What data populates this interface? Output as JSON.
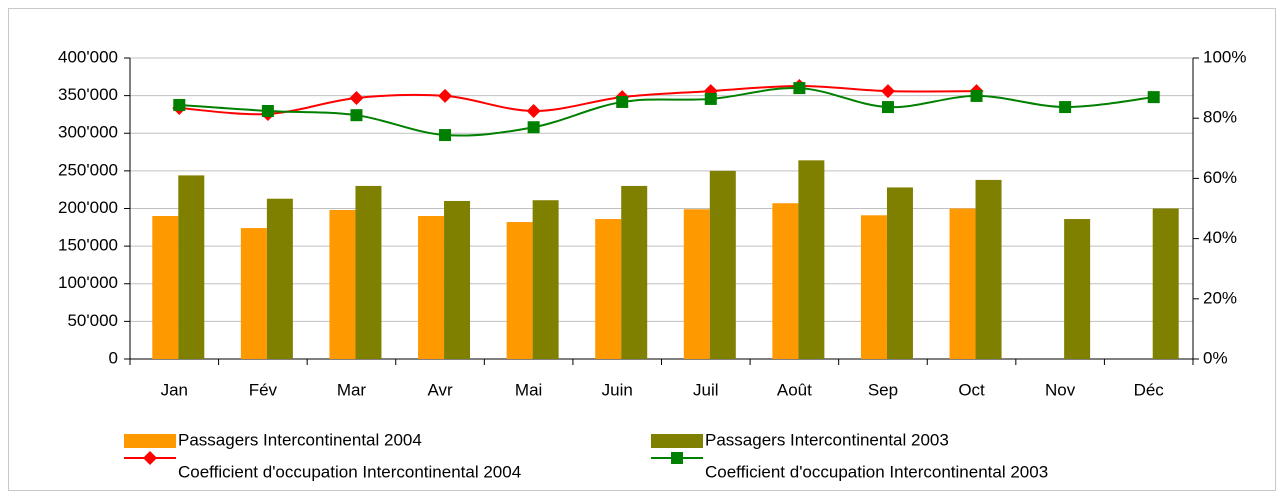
{
  "chart_data": {
    "type": "bar",
    "categories": [
      "Jan",
      "Fév",
      "Mar",
      "Avr",
      "Mai",
      "Juin",
      "Juil",
      "Août",
      "Sep",
      "Oct",
      "Nov",
      "Déc"
    ],
    "series": [
      {
        "name": "Passagers Intercontinental 2004",
        "type": "bar",
        "color": "#ff9900",
        "values": [
          190000,
          174000,
          198000,
          190000,
          182000,
          186000,
          199000,
          207000,
          191000,
          200000,
          null,
          null
        ]
      },
      {
        "name": "Passagers Intercontinental 2003",
        "type": "bar",
        "color": "#808000",
        "values": [
          244000,
          213000,
          230000,
          210000,
          211000,
          230000,
          250000,
          264000,
          228000,
          238000,
          186000,
          200000
        ]
      },
      {
        "name": "Coefficient d'occupation Intercontinental 2004",
        "type": "line",
        "axis": "y2",
        "color": "#ff0000",
        "marker": "diamond",
        "smooth": true,
        "values": [
          83.4,
          81.4,
          86.7,
          87.4,
          82.4,
          87,
          89,
          90.7,
          89,
          89,
          null,
          null
        ]
      },
      {
        "name": "Coefficient d'occupation Intercontinental 2003",
        "type": "line",
        "axis": "y2",
        "color": "#008000",
        "marker": "square",
        "smooth": true,
        "values": [
          84.4,
          82.4,
          81,
          74.4,
          77,
          85.4,
          86.4,
          90,
          83.7,
          87.4,
          83.7,
          87
        ]
      }
    ],
    "ylim": [
      0,
      400000
    ],
    "yticks": [
      0,
      {
        "value": 50000,
        "label": "50'000"
      },
      {
        "value": 100000,
        "label": "100'000"
      },
      {
        "value": 150000,
        "label": "150'000"
      },
      {
        "value": 200000,
        "label": "200'000"
      },
      {
        "value": 250000,
        "label": "250'000"
      },
      {
        "value": 300000,
        "label": "300'000"
      },
      {
        "value": 350000,
        "label": "350'000"
      },
      {
        "value": 400000,
        "label": "400'000"
      }
    ],
    "y2lim": [
      0,
      100
    ],
    "y2ticks": [
      {
        "value": 0,
        "label": "0%"
      },
      {
        "value": 20,
        "label": "20%"
      },
      {
        "value": 40,
        "label": "40%"
      },
      {
        "value": 60,
        "label": "60%"
      },
      {
        "value": 80,
        "label": "80%"
      },
      {
        "value": 100,
        "label": "100%"
      }
    ],
    "grid": true,
    "legend": "bottom"
  }
}
